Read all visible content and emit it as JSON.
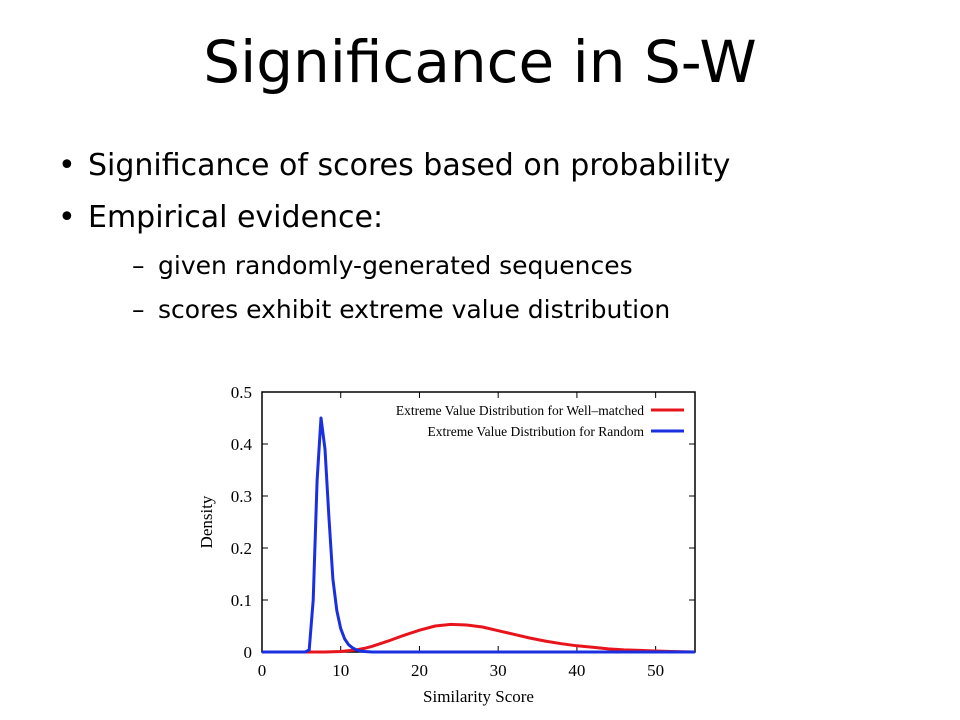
{
  "slide": {
    "title": "Significance in S-W",
    "bullets": [
      "Significance of scores based on probability",
      "Empirical evidence:"
    ],
    "sub_bullets": [
      "given randomly-generated sequences",
      "scores exhibit extreme value distribution"
    ]
  },
  "chart_data": {
    "type": "line",
    "xlabel": "Similarity Score",
    "ylabel": "Density",
    "xlim": [
      0,
      55
    ],
    "ylim": [
      0,
      0.5
    ],
    "x_ticks": [
      0,
      10,
      20,
      30,
      40,
      50
    ],
    "y_ticks": [
      0,
      0.1,
      0.2,
      0.3,
      0.4,
      0.5
    ],
    "grid": false,
    "legend_position": "top-right",
    "series": [
      {
        "name": "Extreme Value Distribution for Well–matched",
        "color": "#e8141b",
        "x": [
          5,
          8,
          10,
          12,
          13,
          14,
          15,
          16,
          18,
          20,
          22,
          24,
          26,
          28,
          30,
          32,
          34,
          36,
          38,
          40,
          42,
          44,
          46,
          48,
          50,
          52,
          55
        ],
        "y": [
          0,
          0,
          0.001,
          0.004,
          0.007,
          0.011,
          0.016,
          0.021,
          0.032,
          0.042,
          0.05,
          0.053,
          0.052,
          0.048,
          0.041,
          0.034,
          0.027,
          0.021,
          0.016,
          0.012,
          0.009,
          0.006,
          0.004,
          0.003,
          0.002,
          0.001,
          0
        ]
      },
      {
        "name": "Extreme Value Distribution for Random",
        "color": "#1a2fe0",
        "x": [
          0,
          5.5,
          6,
          6.5,
          7,
          7.5,
          8,
          8.5,
          9,
          9.5,
          10,
          10.5,
          11,
          11.5,
          12,
          12.5,
          13,
          13.5,
          14,
          55
        ],
        "y": [
          0,
          0,
          0.004,
          0.1,
          0.33,
          0.45,
          0.39,
          0.26,
          0.14,
          0.08,
          0.045,
          0.025,
          0.014,
          0.008,
          0.004,
          0.002,
          0.001,
          0.0005,
          0,
          0
        ]
      }
    ]
  }
}
